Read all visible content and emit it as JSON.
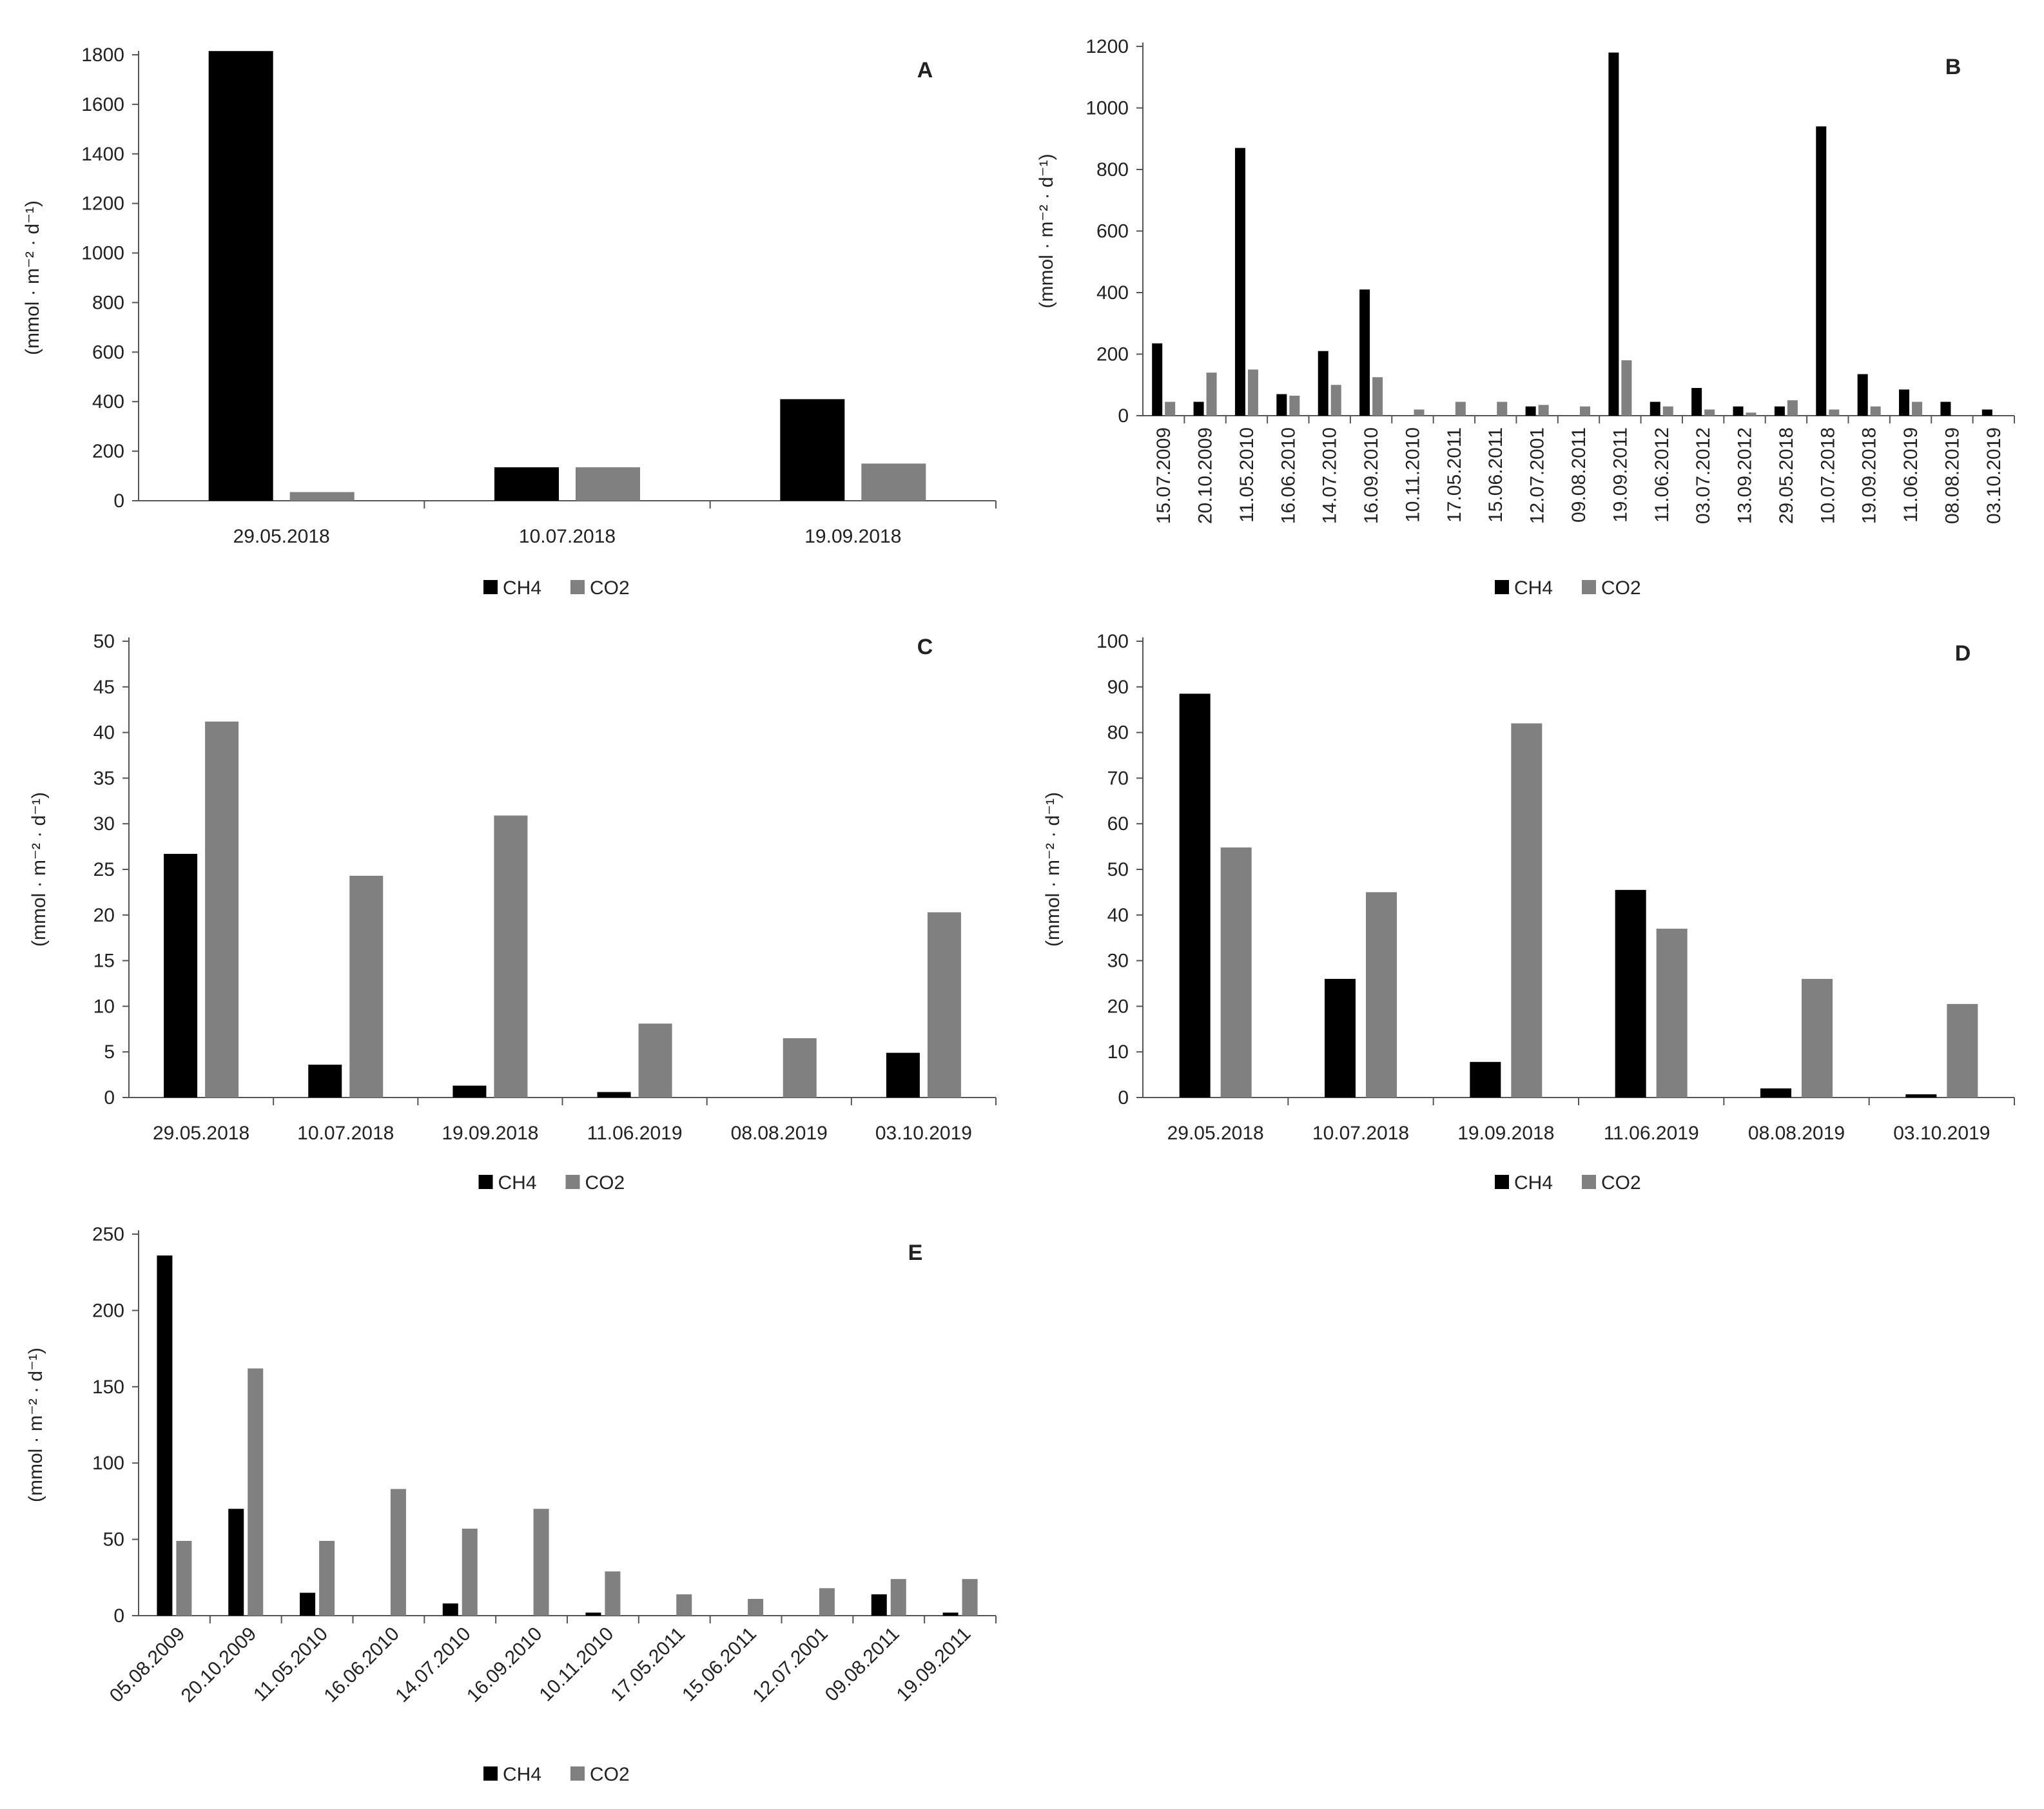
{
  "figure_labels": {
    "series_names": [
      "CH4",
      "CO2"
    ],
    "ylabel": "(mmol · m⁻² · d⁻¹)"
  },
  "colors": {
    "CH4": "#000000",
    "CO2": "#808080"
  },
  "chart_data": [
    {
      "panel": "A",
      "type": "bar",
      "title": "A",
      "ylabel": "(mmol · m⁻² · d⁻¹)",
      "ylim": [
        0,
        1800
      ],
      "yticks": [
        0,
        200,
        400,
        600,
        800,
        1000,
        1200,
        1400,
        1600,
        1800
      ],
      "categories": [
        "29.05.2018",
        "10.07.2018",
        "19.09.2018"
      ],
      "series": [
        {
          "name": "CH4",
          "values": [
            1815,
            135,
            410
          ]
        },
        {
          "name": "CO2",
          "values": [
            35,
            135,
            150
          ]
        }
      ],
      "legend": "bottom-center"
    },
    {
      "panel": "B",
      "type": "bar",
      "title": "B",
      "ylabel": "(mmol · m⁻² · d⁻¹)",
      "ylim": [
        0,
        1200
      ],
      "yticks": [
        0,
        200,
        400,
        600,
        800,
        1000,
        1200
      ],
      "categories": [
        "15.07.2009",
        "20.10.2009",
        "11.05.2010",
        "16.06.2010",
        "14.07.2010",
        "16.09.2010",
        "10.11.2010",
        "17.05.2011",
        "15.06.2011",
        "12.07.2001",
        "09.08.2011",
        "19.09.2011",
        "11.06.2012",
        "03.07.2012",
        "13.09.2012",
        "29.05.2018",
        "10.07.2018",
        "19.09.2018",
        "11.06.2019",
        "08.08.2019",
        "03.10.2019"
      ],
      "series": [
        {
          "name": "CH4",
          "values": [
            235,
            45,
            870,
            70,
            210,
            410,
            0,
            0,
            0,
            30,
            0,
            1180,
            45,
            90,
            30,
            30,
            940,
            135,
            85,
            45,
            20
          ]
        },
        {
          "name": "CO2",
          "values": [
            45,
            140,
            150,
            65,
            100,
            125,
            20,
            45,
            45,
            35,
            30,
            180,
            30,
            20,
            10,
            50,
            20,
            30,
            45,
            0,
            0
          ]
        }
      ],
      "legend": "bottom-center"
    },
    {
      "panel": "C",
      "type": "bar",
      "title": "C",
      "ylabel": "(mmol · m⁻² · d⁻¹)",
      "ylim": [
        0,
        50
      ],
      "yticks": [
        0,
        5,
        10,
        15,
        20,
        25,
        30,
        35,
        40,
        45,
        50
      ],
      "categories": [
        "29.05.2018",
        "10.07.2018",
        "19.09.2018",
        "11.06.2019",
        "08.08.2019",
        "03.10.2019"
      ],
      "series": [
        {
          "name": "CH4",
          "values": [
            26.7,
            3.6,
            1.3,
            0.6,
            0,
            4.9
          ]
        },
        {
          "name": "CO2",
          "values": [
            41.2,
            24.3,
            30.9,
            8.1,
            6.5,
            20.3
          ]
        }
      ],
      "legend": "bottom-center"
    },
    {
      "panel": "D",
      "type": "bar",
      "title": "D",
      "ylabel": "(mmol · m⁻² · d⁻¹)",
      "ylim": [
        0,
        100
      ],
      "yticks": [
        0,
        10,
        20,
        30,
        40,
        50,
        60,
        70,
        80,
        90,
        100
      ],
      "categories": [
        "29.05.2018",
        "10.07.2018",
        "19.09.2018",
        "11.06.2019",
        "08.08.2019",
        "03.10.2019"
      ],
      "series": [
        {
          "name": "CH4",
          "values": [
            88.5,
            26,
            7.8,
            45.5,
            2,
            0.7
          ]
        },
        {
          "name": "CO2",
          "values": [
            54.8,
            45,
            82,
            37,
            26,
            20.5
          ]
        }
      ],
      "legend": "bottom-center"
    },
    {
      "panel": "E",
      "type": "bar",
      "title": "E",
      "ylabel": "(mmol · m⁻² · d⁻¹)",
      "ylim": [
        0,
        250
      ],
      "yticks": [
        0,
        50,
        100,
        150,
        200,
        250
      ],
      "categories": [
        "05.08.2009",
        "20.10.2009",
        "11.05.2010",
        "16.06.2010",
        "14.07.2010",
        "16.09.2010",
        "10.11.2010",
        "17.05.2011",
        "15.06.2011",
        "12.07.2001",
        "09.08.2011",
        "19.09.2011"
      ],
      "series": [
        {
          "name": "CH4",
          "values": [
            236,
            70,
            15,
            0,
            8,
            0,
            2,
            0,
            0,
            0,
            14,
            2
          ]
        },
        {
          "name": "CO2",
          "values": [
            49,
            162,
            49,
            83,
            57,
            70,
            29,
            14,
            11,
            18,
            24,
            24
          ]
        }
      ],
      "legend": "bottom-center"
    }
  ]
}
